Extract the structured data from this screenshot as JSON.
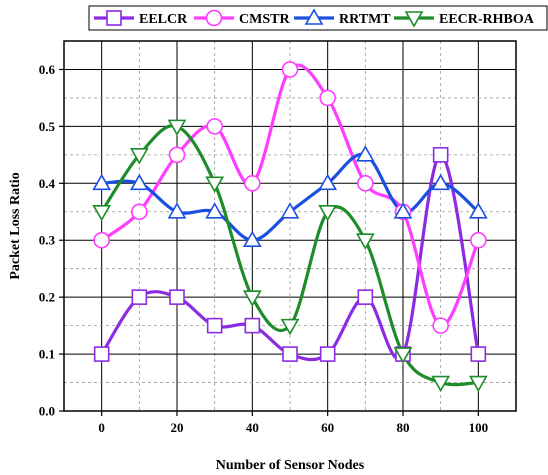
{
  "chart_data": {
    "type": "line",
    "title": "",
    "xlabel": "Number of Sensor Nodes",
    "ylabel": "Packet Loss Ratio",
    "xlim": [
      -10,
      110
    ],
    "ylim": [
      0.0,
      0.65
    ],
    "x_ticks": [
      "0",
      "20",
      "40",
      "60",
      "80",
      "100"
    ],
    "x_tick_values": [
      0,
      20,
      40,
      60,
      80,
      100
    ],
    "y_ticks": [
      "0.0",
      "0.1",
      "0.2",
      "0.3",
      "0.4",
      "0.5",
      "0.6"
    ],
    "y_tick_values": [
      0.0,
      0.1,
      0.2,
      0.3,
      0.4,
      0.5,
      0.6
    ],
    "grid": true,
    "legend_position": "top",
    "smooth": true,
    "x": [
      0,
      10,
      20,
      30,
      40,
      50,
      60,
      70,
      80,
      90,
      100
    ],
    "series": [
      {
        "name": "EELCR",
        "color": "#8B2BE2",
        "marker": "square",
        "values": [
          0.1,
          0.2,
          0.2,
          0.15,
          0.15,
          0.1,
          0.1,
          0.2,
          0.1,
          0.45,
          0.1
        ]
      },
      {
        "name": "CMSTR",
        "color": "#FF3CFF",
        "marker": "circle",
        "values": [
          0.3,
          0.35,
          0.45,
          0.5,
          0.4,
          0.6,
          0.55,
          0.4,
          0.35,
          0.15,
          0.3
        ]
      },
      {
        "name": "RRTMT",
        "color": "#1A4FE0",
        "marker": "triangle-up",
        "values": [
          0.4,
          0.4,
          0.35,
          0.35,
          0.3,
          0.35,
          0.4,
          0.45,
          0.35,
          0.4,
          0.35
        ]
      },
      {
        "name": "EECR-RHBOA",
        "color": "#1E8C2A",
        "marker": "triangle-down",
        "values": [
          0.35,
          0.45,
          0.5,
          0.4,
          0.2,
          0.15,
          0.35,
          0.3,
          0.1,
          0.05,
          0.05
        ]
      }
    ]
  }
}
